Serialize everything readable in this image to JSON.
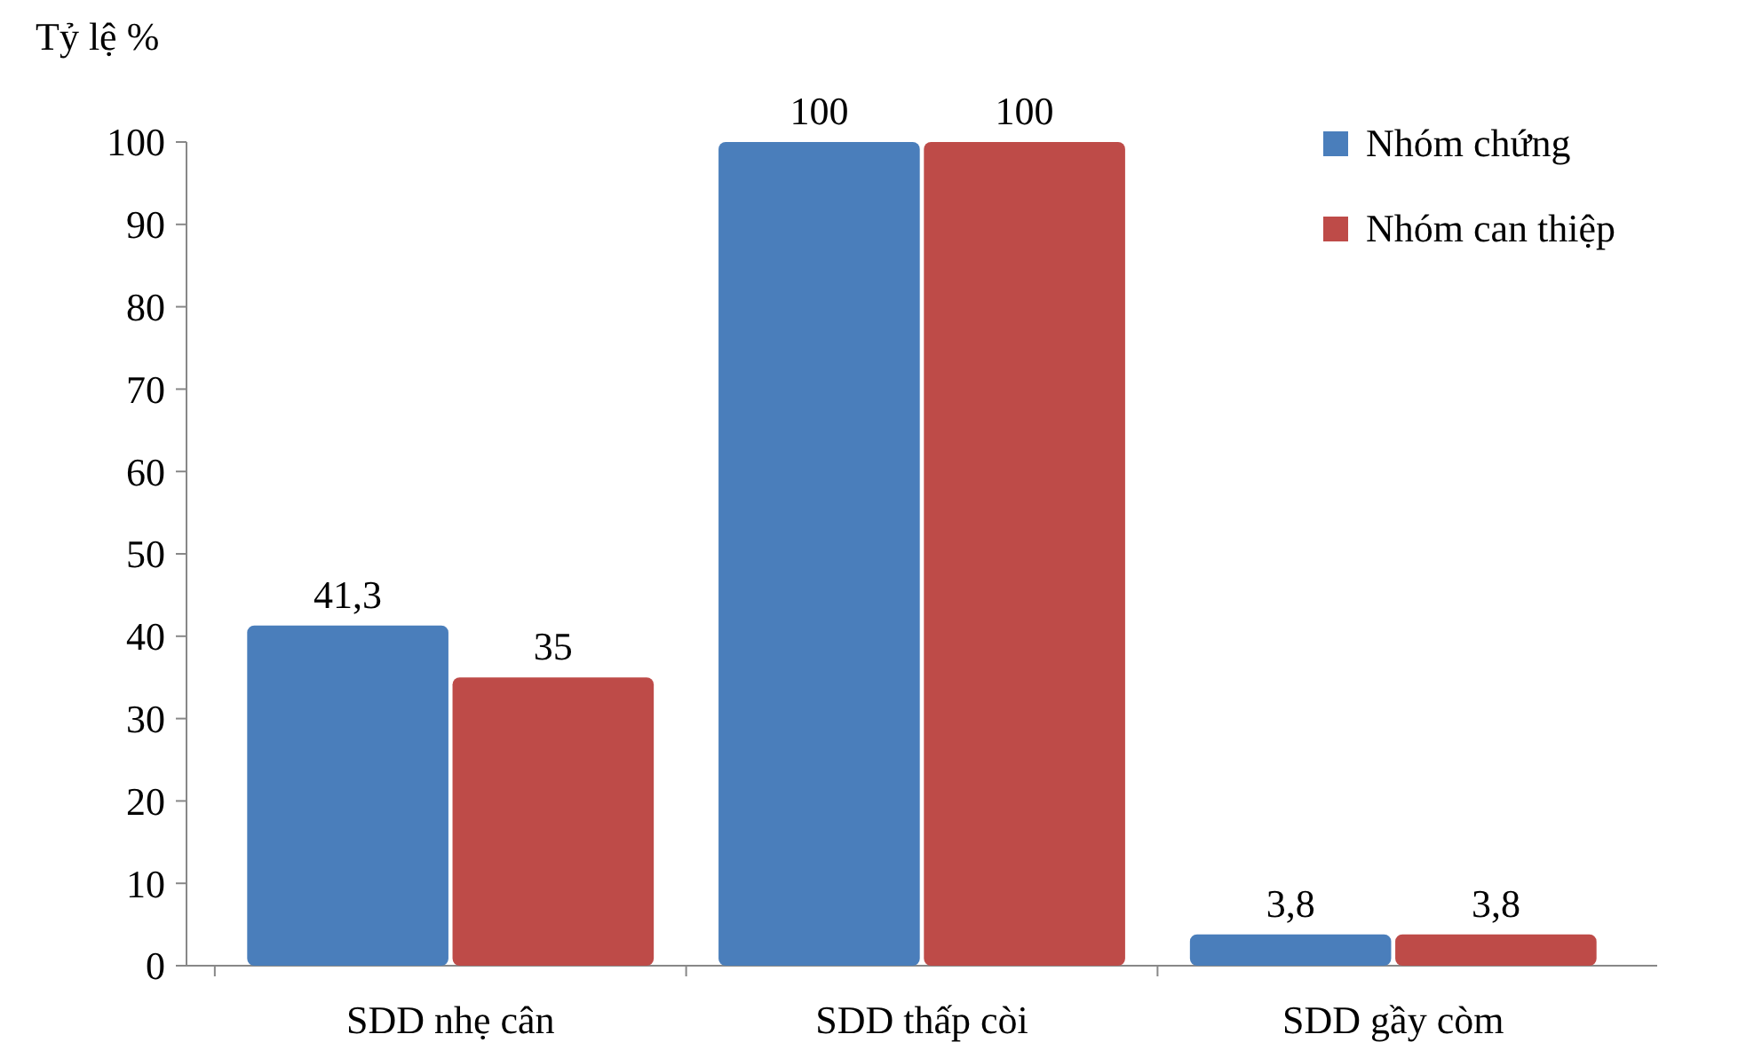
{
  "chart_data": {
    "type": "bar",
    "ylabel": "Tỷ lệ %",
    "categories": [
      "SDD nhẹ cân",
      "SDD thấp còi",
      "SDD gầy còm"
    ],
    "series": [
      {
        "name": "Nhóm chứng",
        "color": "#4a7ebb",
        "values": [
          41.3,
          100,
          3.8
        ],
        "value_labels": [
          "41,3",
          "100",
          "3,8"
        ]
      },
      {
        "name": "Nhóm can thiệp",
        "color": "#be4b48",
        "values": [
          35,
          100,
          3.8
        ],
        "value_labels": [
          "35",
          "100",
          "3,8"
        ]
      }
    ],
    "ylim": [
      0,
      100
    ],
    "yticks": [
      0,
      10,
      20,
      30,
      40,
      50,
      60,
      70,
      80,
      90,
      100
    ],
    "legend": "top right",
    "grid": false
  }
}
